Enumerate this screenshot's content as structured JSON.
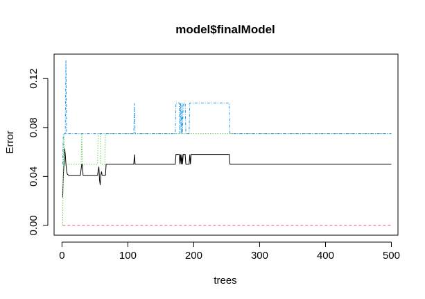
{
  "chart_data": {
    "type": "line",
    "title": "model$finalModel",
    "xlabel": "trees",
    "ylabel": "Error",
    "xlim": [
      -12,
      510
    ],
    "ylim": [
      -0.008,
      0.14
    ],
    "x_ticks": [
      0,
      100,
      200,
      300,
      400,
      500
    ],
    "y_ticks": [
      0.0,
      0.04,
      0.08,
      0.12
    ],
    "x_tick_labels": [
      "0",
      "100",
      "200",
      "300",
      "400",
      "500"
    ],
    "y_tick_labels": [
      "0.00",
      "0.04",
      "0.08",
      "0.12"
    ],
    "grid": false,
    "legend": "none",
    "series": [
      {
        "color": "#000000",
        "dash": "solid",
        "points": [
          [
            1,
            0.023
          ],
          [
            2,
            0.04
          ],
          [
            3,
            0.05
          ],
          [
            4,
            0.063
          ],
          [
            5,
            0.058
          ],
          [
            6,
            0.05
          ],
          [
            7,
            0.045
          ],
          [
            8,
            0.042
          ],
          [
            10,
            0.041
          ],
          [
            28,
            0.041
          ],
          [
            29,
            0.046
          ],
          [
            30,
            0.05
          ],
          [
            31,
            0.05
          ],
          [
            32,
            0.041
          ],
          [
            54,
            0.041
          ],
          [
            55,
            0.045
          ],
          [
            56,
            0.048
          ],
          [
            57,
            0.037
          ],
          [
            58,
            0.033
          ],
          [
            59,
            0.041
          ],
          [
            60,
            0.044
          ],
          [
            61,
            0.041
          ],
          [
            66,
            0.041
          ],
          [
            67,
            0.05
          ],
          [
            109,
            0.05
          ],
          [
            110,
            0.058
          ],
          [
            111,
            0.05
          ],
          [
            172,
            0.05
          ],
          [
            173,
            0.058
          ],
          [
            178,
            0.058
          ],
          [
            179,
            0.05
          ],
          [
            180,
            0.058
          ],
          [
            181,
            0.05
          ],
          [
            182,
            0.058
          ],
          [
            183,
            0.05
          ],
          [
            184,
            0.058
          ],
          [
            187,
            0.058
          ],
          [
            188,
            0.05
          ],
          [
            193,
            0.05
          ],
          [
            194,
            0.058
          ],
          [
            195,
            0.05
          ],
          [
            196,
            0.058
          ],
          [
            254,
            0.058
          ],
          [
            255,
            0.05
          ],
          [
            500,
            0.05
          ]
        ]
      },
      {
        "color": "#DF536B",
        "dash": "dashed",
        "points": [
          [
            1,
            0.0
          ],
          [
            500,
            0.0
          ]
        ]
      },
      {
        "color": "#61D04F",
        "dash": "dotted",
        "points": [
          [
            1,
            0.0
          ],
          [
            2,
            0.05
          ],
          [
            3,
            0.075
          ],
          [
            4,
            0.05
          ],
          [
            29,
            0.05
          ],
          [
            30,
            0.075
          ],
          [
            31,
            0.05
          ],
          [
            54,
            0.05
          ],
          [
            55,
            0.075
          ],
          [
            58,
            0.075
          ],
          [
            59,
            0.05
          ],
          [
            65,
            0.05
          ],
          [
            66,
            0.075
          ],
          [
            500,
            0.075
          ]
        ]
      },
      {
        "color": "#2297E6",
        "dash": "dashdot",
        "points": [
          [
            1,
            0.05
          ],
          [
            2,
            0.075
          ],
          [
            5,
            0.075
          ],
          [
            6,
            0.135
          ],
          [
            7,
            0.075
          ],
          [
            8,
            0.075
          ],
          [
            109,
            0.075
          ],
          [
            110,
            0.1
          ],
          [
            111,
            0.075
          ],
          [
            172,
            0.075
          ],
          [
            173,
            0.1
          ],
          [
            178,
            0.1
          ],
          [
            179,
            0.075
          ],
          [
            180,
            0.1
          ],
          [
            181,
            0.075
          ],
          [
            182,
            0.1
          ],
          [
            183,
            0.075
          ],
          [
            184,
            0.1
          ],
          [
            187,
            0.1
          ],
          [
            188,
            0.075
          ],
          [
            193,
            0.075
          ],
          [
            194,
            0.1
          ],
          [
            254,
            0.1
          ],
          [
            255,
            0.075
          ],
          [
            500,
            0.075
          ]
        ]
      }
    ]
  }
}
